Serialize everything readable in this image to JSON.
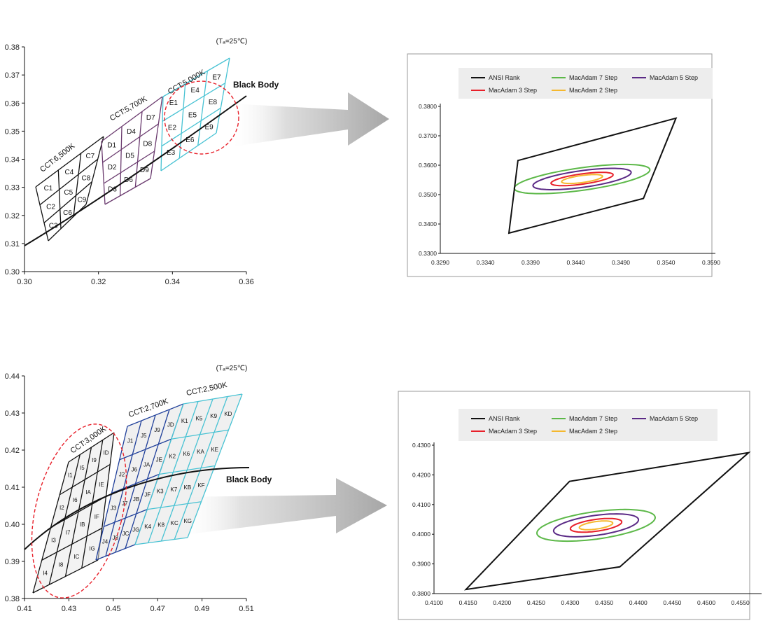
{
  "colors": {
    "black": "#111111",
    "green": "#5cb848",
    "red": "#e8202a",
    "purple": "#5b2a86",
    "orange": "#f5b82e",
    "cyan": "#47c2d3",
    "violet": "#6a3a6e",
    "blue": "#1f3f9a",
    "dash_red": "#e8202a"
  },
  "chart_data": [
    {
      "id": "top-bins",
      "type": "diagram",
      "note": "(Tₐ=25℃)",
      "black_body_label": "Black Body",
      "x_ticks": [
        "0.30",
        "0.32",
        "0.34",
        "0.36"
      ],
      "y_ticks": [
        "0.30",
        "0.31",
        "0.32",
        "0.33",
        "0.34",
        "0.35",
        "0.36",
        "0.37",
        "0.38"
      ],
      "xlim": [
        0.3,
        0.36
      ],
      "ylim": [
        0.3,
        0.38
      ],
      "groups": [
        {
          "name": "CCT:6,500K",
          "color": "black",
          "cells": [
            "C1",
            "C2",
            "C3",
            "C4",
            "C5",
            "C6",
            "C7",
            "C8",
            "C9"
          ]
        },
        {
          "name": "CCT:5,700K",
          "color": "violet",
          "cells": [
            "D1",
            "D2",
            "D3",
            "D4",
            "D5",
            "D6",
            "D7",
            "D8",
            "D9"
          ]
        },
        {
          "name": "CCT:5,000K",
          "color": "cyan",
          "cells": [
            "E1",
            "E2",
            "E3",
            "E4",
            "E5",
            "E6",
            "E7",
            "E8",
            "E9"
          ]
        }
      ]
    },
    {
      "id": "top-macadam",
      "type": "line",
      "legend": [
        "ANSI Rank",
        "MacAdam 7 Step",
        "MacAdam 5 Step",
        "MacAdam 3 Step",
        "MacAdam 2 Step"
      ],
      "x_ticks": [
        "0.3290",
        "0.3340",
        "0.3390",
        "0.3440",
        "0.3490",
        "0.3540",
        "0.3590"
      ],
      "y_ticks": [
        "0.3300",
        "0.3400",
        "0.3500",
        "0.3600",
        "0.3700",
        "0.3800"
      ],
      "xlim": [
        0.329,
        0.359
      ],
      "ylim": [
        0.33,
        0.38
      ],
      "ansi_quad": [
        [
          0.3376,
          0.3616
        ],
        [
          0.3551,
          0.376
        ],
        [
          0.3515,
          0.3487
        ],
        [
          0.3366,
          0.3369
        ]
      ],
      "ellipses": [
        {
          "name": "MacAdam 7 Step",
          "color": "green",
          "center": [
            0.3447,
            0.3553
          ],
          "a": 0.0083,
          "b": 0.0035,
          "angle": 28
        },
        {
          "name": "MacAdam 5 Step",
          "color": "purple",
          "center": [
            0.3447,
            0.3553
          ],
          "a": 0.006,
          "b": 0.0026,
          "angle": 28
        },
        {
          "name": "MacAdam 3 Step",
          "color": "red",
          "center": [
            0.3447,
            0.3553
          ],
          "a": 0.0038,
          "b": 0.0016,
          "angle": 28
        },
        {
          "name": "MacAdam 2 Step",
          "color": "orange",
          "center": [
            0.3447,
            0.3553
          ],
          "a": 0.0025,
          "b": 0.0011,
          "angle": 28
        }
      ]
    },
    {
      "id": "bottom-bins",
      "type": "diagram",
      "note": "(Tₐ=25℃)",
      "black_body_label": "Black Body",
      "x_ticks": [
        "0.41",
        "0.43",
        "0.45",
        "0.47",
        "0.49",
        "0.51"
      ],
      "y_ticks": [
        "0.38",
        "0.39",
        "0.40",
        "0.41",
        "0.42",
        "0.43",
        "0.44"
      ],
      "xlim": [
        0.41,
        0.51
      ],
      "ylim": [
        0.38,
        0.44
      ],
      "groups": [
        {
          "name": "CCT:3,000K",
          "color": "black",
          "cells": [
            "I1",
            "I2",
            "I3",
            "I4",
            "I5",
            "I6",
            "I7",
            "I8",
            "I9",
            "IA",
            "IB",
            "IC",
            "ID",
            "IE",
            "IF",
            "IG"
          ]
        },
        {
          "name": "CCT:2,700K",
          "color": "blue",
          "cells": [
            "J1",
            "J2",
            "J3",
            "J4",
            "J5",
            "J6",
            "J7",
            "J8",
            "J9",
            "JA",
            "JB",
            "JC",
            "JD",
            "JE",
            "JF",
            "JG"
          ]
        },
        {
          "name": "CCT:2,500K",
          "color": "cyan",
          "cells": [
            "K1",
            "K2",
            "K3",
            "K4",
            "K5",
            "K6",
            "K7",
            "K8",
            "K9",
            "KA",
            "KB",
            "KC",
            "KD",
            "KE",
            "KF",
            "KG"
          ]
        }
      ]
    },
    {
      "id": "bottom-macadam",
      "type": "line",
      "legend": [
        "ANSI Rank",
        "MacAdam 7 Step",
        "MacAdam 5 Step",
        "MacAdam 3 Step",
        "MacAdam 2 Step"
      ],
      "x_ticks": [
        "0.4100",
        "0.4150",
        "0.4200",
        "0.4250",
        "0.4300",
        "0.4350",
        "0.4400",
        "0.4450",
        "0.4500",
        "0.4550"
      ],
      "y_ticks": [
        "0.3800",
        "0.3900",
        "0.4000",
        "0.4100",
        "0.4200",
        "0.4300"
      ],
      "xlim": [
        0.41,
        0.4575
      ],
      "ylim": [
        0.38,
        0.43
      ],
      "ansi_quad": [
        [
          0.4147,
          0.3814
        ],
        [
          0.4299,
          0.4178
        ],
        [
          0.4562,
          0.4275
        ],
        [
          0.4373,
          0.389
        ]
      ],
      "ellipses": [
        {
          "name": "MacAdam 7 Step",
          "color": "green",
          "center": [
            0.4338,
            0.403
          ],
          "a": 0.0092,
          "b": 0.0044,
          "angle": 22
        },
        {
          "name": "MacAdam 5 Step",
          "color": "purple",
          "center": [
            0.4338,
            0.403
          ],
          "a": 0.0066,
          "b": 0.0032,
          "angle": 22
        },
        {
          "name": "MacAdam 3 Step",
          "color": "red",
          "center": [
            0.4338,
            0.403
          ],
          "a": 0.004,
          "b": 0.0019,
          "angle": 22
        },
        {
          "name": "MacAdam 2 Step",
          "color": "orange",
          "center": [
            0.4338,
            0.403
          ],
          "a": 0.0026,
          "b": 0.0012,
          "angle": 22
        }
      ]
    }
  ]
}
